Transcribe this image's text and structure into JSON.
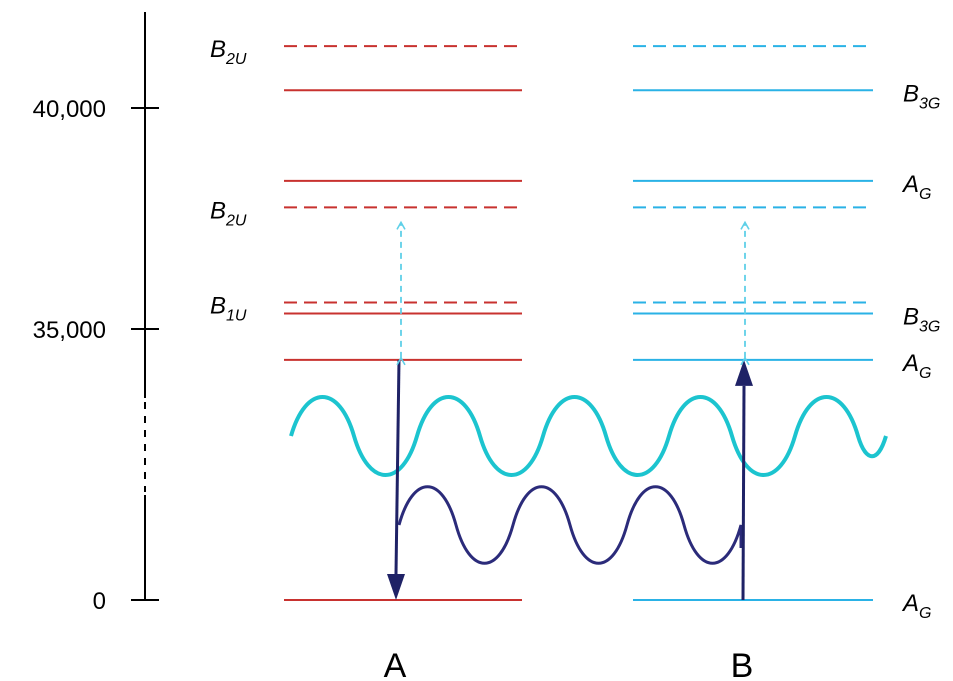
{
  "axis": {
    "ticks": [
      {
        "value": 40000,
        "label": "40,000"
      },
      {
        "value": 35000,
        "label": "35,000"
      },
      {
        "value": 0,
        "label": "0"
      }
    ],
    "axis_break": true
  },
  "colors": {
    "A": "#c8322f",
    "B": "#2ab2e6",
    "light_wave": "#1cc4cf",
    "vib_wave": "#2b2b7a",
    "arrow": "#1f2266",
    "transition_dashed": "#5fd0e8"
  },
  "columns": [
    {
      "id": "A",
      "label": "A"
    },
    {
      "id": "B",
      "label": "B"
    }
  ],
  "levels_A": [
    {
      "energy": 41400,
      "style": "dashed",
      "label": "B",
      "sub": "2U"
    },
    {
      "energy": 40400,
      "style": "solid"
    },
    {
      "energy": 38350,
      "style": "solid"
    },
    {
      "energy": 37750,
      "style": "dashed",
      "label": "B",
      "sub": "2U"
    },
    {
      "energy": 35600,
      "style": "dashed",
      "label": "B",
      "sub": "1U"
    },
    {
      "energy": 35350,
      "style": "solid"
    },
    {
      "energy": 34300,
      "style": "solid"
    },
    {
      "energy": 0,
      "style": "solid"
    }
  ],
  "levels_B": [
    {
      "energy": 41400,
      "style": "dashed"
    },
    {
      "energy": 40400,
      "style": "solid",
      "label": "B",
      "sub": "3G"
    },
    {
      "energy": 38350,
      "style": "solid",
      "label": "A",
      "sub": "G"
    },
    {
      "energy": 37750,
      "style": "dashed"
    },
    {
      "energy": 35600,
      "style": "dashed"
    },
    {
      "energy": 35350,
      "style": "solid",
      "label": "B",
      "sub": "3G"
    },
    {
      "energy": 34300,
      "style": "solid",
      "label": "A",
      "sub": "G"
    },
    {
      "energy": 0,
      "style": "solid",
      "label": "A",
      "sub": "G"
    }
  ],
  "transitions": [
    {
      "column": "A",
      "kind": "emission",
      "from": 34300,
      "to": 0
    },
    {
      "column": "B",
      "kind": "absorption",
      "from": 0,
      "to": 34300
    },
    {
      "column": "A",
      "kind": "two-photon",
      "from": 34300,
      "to": 37750
    },
    {
      "column": "B",
      "kind": "two-photon",
      "from": 34300,
      "to": 37750
    }
  ]
}
